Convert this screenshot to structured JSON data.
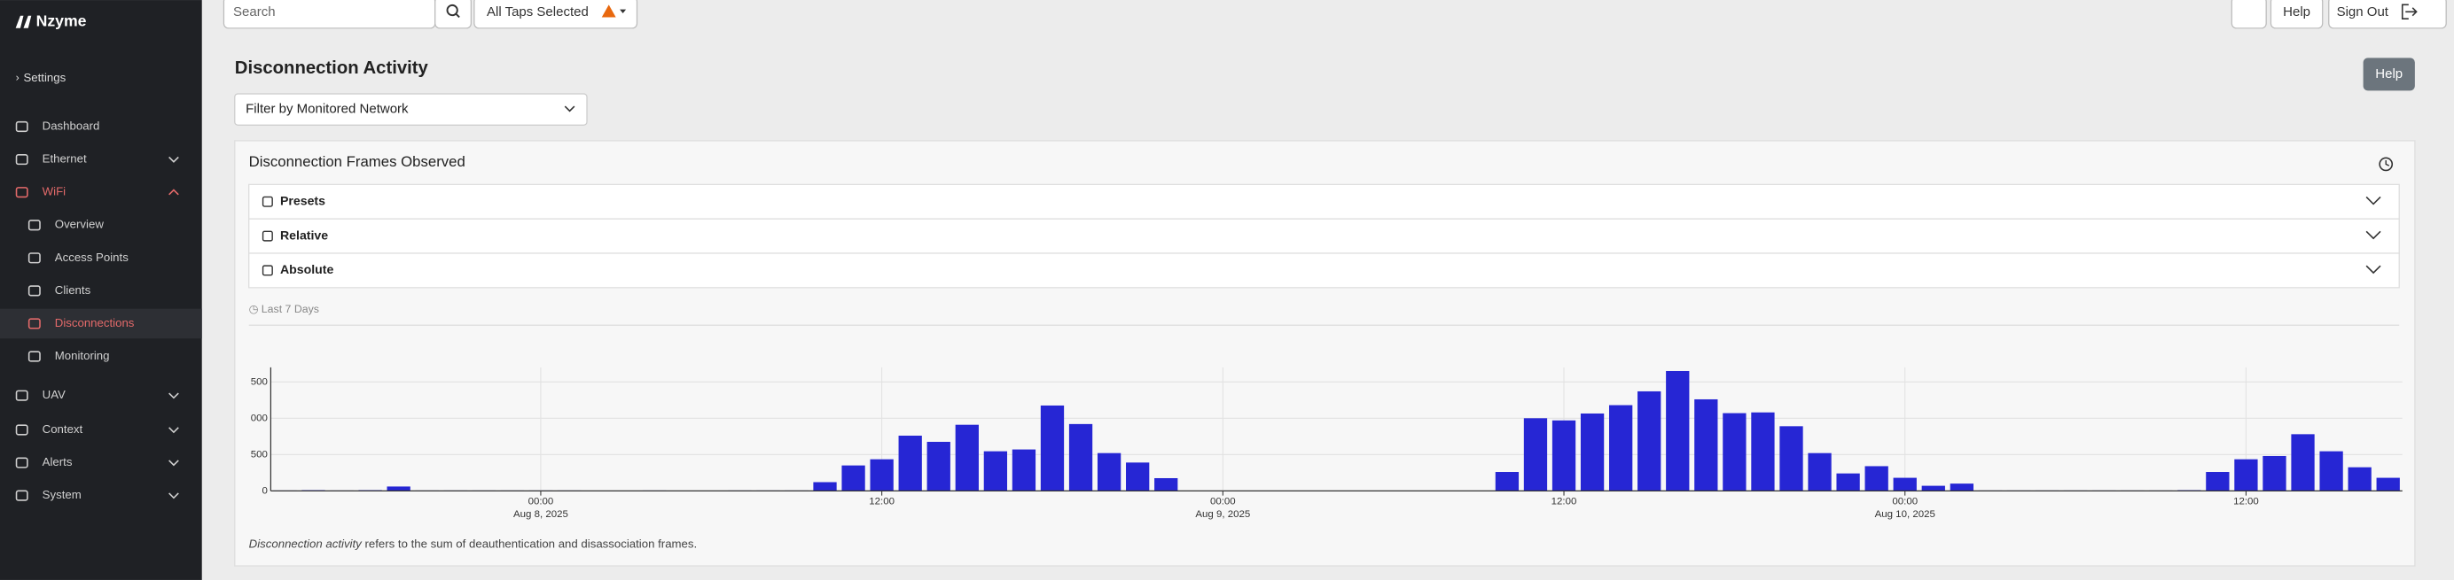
{
  "brand": "Nzyme",
  "sidebar": {
    "settings": "Settings",
    "nav": [
      {
        "label": "Dashboard"
      },
      {
        "label": "Ethernet",
        "expandable": true
      },
      {
        "label": "WiFi",
        "expandable": true,
        "expanded": true,
        "active": true,
        "children": [
          {
            "label": "Overview"
          },
          {
            "label": "Access Points"
          },
          {
            "label": "Clients"
          },
          {
            "label": "Disconnections",
            "active": true
          },
          {
            "label": "Monitoring"
          }
        ]
      },
      {
        "label": "UAV",
        "expandable": true
      },
      {
        "label": "Context",
        "expandable": true
      },
      {
        "label": "Alerts",
        "expandable": true
      },
      {
        "label": "System",
        "expandable": true
      }
    ]
  },
  "topbar": {
    "search_placeholder": "Search",
    "taps": "All Taps Selected",
    "help": "Help",
    "sign_out": "Sign Out"
  },
  "page": {
    "title": "Disconnection Activity",
    "help": "Help",
    "filter": "Filter by Monitored Network"
  },
  "card": {
    "title": "Disconnection Frames Observed",
    "accordion": [
      "Presets",
      "Relative",
      "Absolute"
    ],
    "range": "Last 7 Days",
    "footnote_term": "Disconnection activity",
    "footnote_rest": " refers to the sum of deauthentication and disassociation frames."
  },
  "chart_data": {
    "type": "bar",
    "color": "#2626d4",
    "grid": true,
    "x": [
      "2025-08-07T15:00",
      "2025-08-07T16:00",
      "2025-08-07T17:00",
      "2025-08-07T18:00",
      "2025-08-07T19:00",
      "2025-08-07T20:00",
      "2025-08-07T21:00",
      "2025-08-07T22:00",
      "2025-08-07T23:00",
      "2025-08-08T00:00",
      "2025-08-08T01:00",
      "2025-08-08T02:00",
      "2025-08-08T03:00",
      "2025-08-08T04:00",
      "2025-08-08T05:00",
      "2025-08-08T06:00",
      "2025-08-08T07:00",
      "2025-08-08T08:00",
      "2025-08-08T09:00",
      "2025-08-08T10:00",
      "2025-08-08T11:00",
      "2025-08-08T12:00",
      "2025-08-08T13:00",
      "2025-08-08T14:00",
      "2025-08-08T15:00",
      "2025-08-08T16:00",
      "2025-08-08T17:00",
      "2025-08-08T18:00",
      "2025-08-08T19:00",
      "2025-08-08T20:00",
      "2025-08-08T21:00",
      "2025-08-08T22:00",
      "2025-08-08T23:00",
      "2025-08-09T00:00",
      "2025-08-09T01:00",
      "2025-08-09T02:00",
      "2025-08-09T03:00",
      "2025-08-09T04:00",
      "2025-08-09T05:00",
      "2025-08-09T06:00",
      "2025-08-09T07:00",
      "2025-08-09T08:00",
      "2025-08-09T09:00",
      "2025-08-09T10:00",
      "2025-08-09T11:00",
      "2025-08-09T12:00",
      "2025-08-09T13:00",
      "2025-08-09T14:00",
      "2025-08-09T15:00",
      "2025-08-09T16:00",
      "2025-08-09T17:00",
      "2025-08-09T18:00",
      "2025-08-09T19:00",
      "2025-08-09T20:00",
      "2025-08-09T21:00",
      "2025-08-09T22:00",
      "2025-08-09T23:00",
      "2025-08-10T00:00",
      "2025-08-10T01:00",
      "2025-08-10T02:00",
      "2025-08-10T03:00",
      "2025-08-10T04:00",
      "2025-08-10T05:00",
      "2025-08-10T06:00",
      "2025-08-10T07:00",
      "2025-08-10T08:00",
      "2025-08-10T09:00",
      "2025-08-10T10:00",
      "2025-08-10T11:00",
      "2025-08-10T12:00",
      "2025-08-10T13:00",
      "2025-08-10T14:00",
      "2025-08-10T15:00",
      "2025-08-10T16:00",
      "2025-08-10T17:00"
    ],
    "values": [
      5,
      10,
      5,
      10,
      60,
      5,
      5,
      5,
      5,
      5,
      5,
      0,
      0,
      5,
      0,
      0,
      5,
      5,
      5,
      120,
      350,
      435,
      760,
      675,
      910,
      545,
      570,
      1175,
      920,
      520,
      390,
      175,
      0,
      0,
      0,
      0,
      0,
      0,
      0,
      0,
      0,
      0,
      0,
      260,
      1000,
      970,
      1065,
      1180,
      1370,
      1650,
      1260,
      1070,
      1080,
      890,
      520,
      240,
      340,
      180,
      70,
      100,
      5,
      5,
      5,
      5,
      5,
      5,
      5,
      10,
      260,
      435,
      480,
      780,
      545,
      325,
      180
    ],
    "xlim": [
      "2025-08-07T14:30",
      "2025-08-10T17:30"
    ],
    "xticks": [
      {
        "value": "2025-08-08T00:00",
        "label": [
          "00:00",
          "Aug 8, 2025"
        ]
      },
      {
        "value": "2025-08-08T12:00",
        "label": [
          "12:00"
        ]
      },
      {
        "value": "2025-08-09T00:00",
        "label": [
          "00:00",
          "Aug 9, 2025"
        ]
      },
      {
        "value": "2025-08-09T12:00",
        "label": [
          "12:00"
        ]
      },
      {
        "value": "2025-08-10T00:00",
        "label": [
          "00:00",
          "Aug 10, 2025"
        ]
      },
      {
        "value": "2025-08-10T12:00",
        "label": [
          "12:00"
        ]
      }
    ],
    "ylim": [
      0,
      1700
    ],
    "yticks": [
      0,
      {
        "value": 500,
        "label": "500"
      },
      {
        "value": 1000,
        "label": "000"
      },
      {
        "value": 1500,
        "label": "500"
      }
    ]
  }
}
